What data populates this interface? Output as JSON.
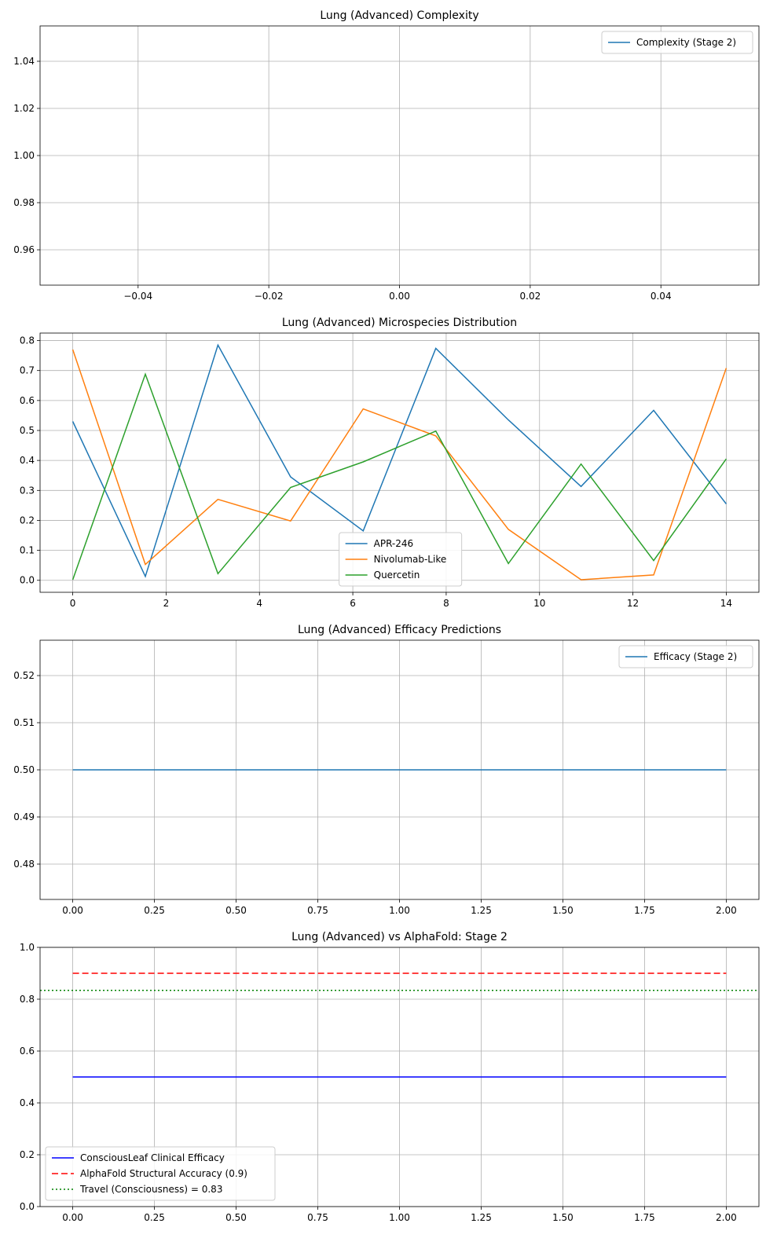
{
  "chart_data": [
    {
      "type": "line",
      "title": "Lung (Advanced) Complexity",
      "xlabel": "",
      "ylabel": "",
      "xlim": [
        -0.055,
        0.055
      ],
      "ylim": [
        0.945,
        1.055
      ],
      "xticks": [
        -0.04,
        -0.02,
        0.0,
        0.02,
        0.04
      ],
      "xtick_labels": [
        "−0.04",
        "−0.02",
        "0.00",
        "0.02",
        "0.04"
      ],
      "yticks": [
        0.96,
        0.98,
        1.0,
        1.02,
        1.04
      ],
      "ytick_labels": [
        "0.96",
        "0.98",
        "1.00",
        "1.02",
        "1.04"
      ],
      "grid": true,
      "legend": "upper-right",
      "series": [
        {
          "name": "Complexity (Stage 2)",
          "color": "#1f77b4",
          "dash": "solid",
          "x": [],
          "y": []
        }
      ]
    },
    {
      "type": "line",
      "title": "Lung (Advanced) Microspecies Distribution",
      "xlabel": "",
      "ylabel": "",
      "xlim": [
        -0.7,
        14.7
      ],
      "ylim": [
        -0.04,
        0.825
      ],
      "xticks": [
        0,
        2,
        4,
        6,
        8,
        10,
        12,
        14
      ],
      "xtick_labels": [
        "0",
        "2",
        "4",
        "6",
        "8",
        "10",
        "12",
        "14"
      ],
      "yticks": [
        0.0,
        0.1,
        0.2,
        0.3,
        0.4,
        0.5,
        0.6,
        0.7,
        0.8
      ],
      "ytick_labels": [
        "0.0",
        "0.1",
        "0.2",
        "0.3",
        "0.4",
        "0.5",
        "0.6",
        "0.7",
        "0.8"
      ],
      "grid": true,
      "legend": "lower-center",
      "series": [
        {
          "name": "APR-246",
          "color": "#1f77b4",
          "dash": "solid",
          "x": [
            0,
            1.556,
            3.111,
            4.667,
            6.222,
            7.778,
            9.333,
            10.889,
            12.444,
            14
          ],
          "y": [
            0.53,
            0.013,
            0.785,
            0.345,
            0.165,
            0.774,
            0.535,
            0.313,
            0.567,
            0.255
          ]
        },
        {
          "name": "Nivolumab-Like",
          "color": "#ff7f0e",
          "dash": "solid",
          "x": [
            0,
            1.556,
            3.111,
            4.667,
            6.222,
            7.778,
            9.333,
            10.889,
            12.444,
            14
          ],
          "y": [
            0.77,
            0.053,
            0.27,
            0.198,
            0.572,
            0.482,
            0.17,
            0.002,
            0.018,
            0.708
          ]
        },
        {
          "name": "Quercetin",
          "color": "#2ca02c",
          "dash": "solid",
          "x": [
            0,
            1.556,
            3.111,
            4.667,
            6.222,
            7.778,
            9.333,
            10.889,
            12.444,
            14
          ],
          "y": [
            0.002,
            0.688,
            0.022,
            0.31,
            0.395,
            0.498,
            0.056,
            0.388,
            0.066,
            0.405
          ]
        }
      ]
    },
    {
      "type": "line",
      "title": "Lung (Advanced) Efficacy Predictions",
      "xlabel": "",
      "ylabel": "",
      "xlim": [
        -0.1,
        2.1
      ],
      "ylim": [
        0.4725,
        0.5275
      ],
      "xticks": [
        0.0,
        0.25,
        0.5,
        0.75,
        1.0,
        1.25,
        1.5,
        1.75,
        2.0
      ],
      "xtick_labels": [
        "0.00",
        "0.25",
        "0.50",
        "0.75",
        "1.00",
        "1.25",
        "1.50",
        "1.75",
        "2.00"
      ],
      "yticks": [
        0.48,
        0.49,
        0.5,
        0.51,
        0.52
      ],
      "ytick_labels": [
        "0.48",
        "0.49",
        "0.50",
        "0.51",
        "0.52"
      ],
      "grid": true,
      "legend": "upper-right",
      "series": [
        {
          "name": "Efficacy (Stage 2)",
          "color": "#1f77b4",
          "dash": "solid",
          "x": [
            0,
            1,
            2
          ],
          "y": [
            0.5,
            0.5,
            0.5
          ]
        }
      ]
    },
    {
      "type": "line",
      "title": "Lung (Advanced) vs AlphaFold: Stage 2",
      "xlabel": "",
      "ylabel": "",
      "xlim": [
        -0.1,
        2.1
      ],
      "ylim": [
        0.0,
        1.0
      ],
      "xticks": [
        0.0,
        0.25,
        0.5,
        0.75,
        1.0,
        1.25,
        1.5,
        1.75,
        2.0
      ],
      "xtick_labels": [
        "0.00",
        "0.25",
        "0.50",
        "0.75",
        "1.00",
        "1.25",
        "1.50",
        "1.75",
        "2.00"
      ],
      "yticks": [
        0.0,
        0.2,
        0.4,
        0.6,
        0.8,
        1.0
      ],
      "ytick_labels": [
        "0.0",
        "0.2",
        "0.4",
        "0.6",
        "0.8",
        "1.0"
      ],
      "grid": true,
      "legend": "lower-left",
      "series": [
        {
          "name": "ConsciousLeaf Clinical Efficacy",
          "color": "#0000ff",
          "dash": "solid",
          "x": [
            0,
            1,
            2
          ],
          "y": [
            0.5,
            0.5,
            0.5
          ]
        },
        {
          "name": "AlphaFold Structural Accuracy (0.9)",
          "color": "#ff0000",
          "dash": "dashed",
          "x": [
            0,
            1,
            2
          ],
          "y": [
            0.9,
            0.9,
            0.9
          ]
        },
        {
          "name": "Travel (Consciousness) = 0.83",
          "color": "#008000",
          "dash": "dotted",
          "hline": true,
          "y": [
            0.834
          ]
        }
      ]
    }
  ]
}
